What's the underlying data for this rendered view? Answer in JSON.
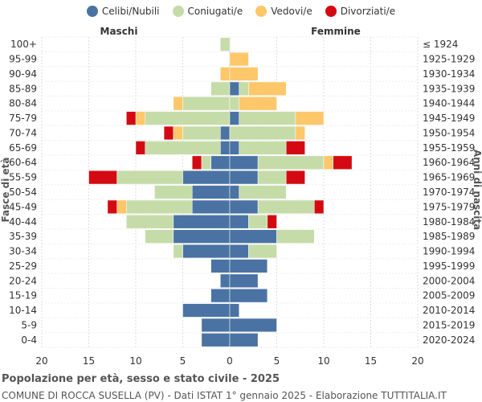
{
  "chart_data": {
    "type": "bar",
    "orientation": "horizontal-population-pyramid",
    "title": "Popolazione per età, sesso e stato civile - 2025",
    "subtitle": "COMUNE DI ROCCA SUSELLA (PV) - Dati ISTAT 1° gennaio 2025 - Elaborazione TUTTITALIA.IT",
    "left_label": "Maschi",
    "right_label": "Femmine",
    "ylabel_left": "Fasce di età",
    "ylabel_right": "Anni di nascita",
    "xlim": [
      -20,
      20
    ],
    "x_ticks": [
      "20",
      "15",
      "10",
      "5",
      "0",
      "5",
      "10",
      "15",
      "20"
    ],
    "grid": true,
    "legend_position": "top",
    "series": [
      {
        "name": "Celibi/Nubili",
        "color": "#4a73a4"
      },
      {
        "name": "Coniugati/e",
        "color": "#c5dca8"
      },
      {
        "name": "Vedovi/e",
        "color": "#fdc76a"
      },
      {
        "name": "Divorziati/e",
        "color": "#d40a12"
      }
    ],
    "rows": [
      {
        "age": "100+",
        "birth": "≤ 1924",
        "male": [
          0,
          1,
          0,
          0
        ],
        "female": [
          0,
          0,
          0,
          0
        ]
      },
      {
        "age": "95-99",
        "birth": "1925-1929",
        "male": [
          0,
          0,
          0,
          0
        ],
        "female": [
          0,
          0,
          2,
          0
        ]
      },
      {
        "age": "90-94",
        "birth": "1930-1934",
        "male": [
          0,
          0,
          1,
          0
        ],
        "female": [
          0,
          0,
          3,
          0
        ]
      },
      {
        "age": "85-89",
        "birth": "1935-1939",
        "male": [
          0,
          2,
          0,
          0
        ],
        "female": [
          1,
          1,
          4,
          0
        ]
      },
      {
        "age": "80-84",
        "birth": "1940-1944",
        "male": [
          0,
          5,
          1,
          0
        ],
        "female": [
          0,
          1,
          4,
          0
        ]
      },
      {
        "age": "75-79",
        "birth": "1945-1949",
        "male": [
          0,
          9,
          1,
          1
        ],
        "female": [
          1,
          6,
          3,
          0
        ]
      },
      {
        "age": "70-74",
        "birth": "1950-1954",
        "male": [
          1,
          4,
          1,
          1
        ],
        "female": [
          0,
          7,
          1,
          0
        ]
      },
      {
        "age": "65-69",
        "birth": "1955-1959",
        "male": [
          1,
          8,
          0,
          1
        ],
        "female": [
          1,
          5,
          0,
          2
        ]
      },
      {
        "age": "60-64",
        "birth": "1960-1964",
        "male": [
          2,
          1,
          0,
          1
        ],
        "female": [
          3,
          7,
          1,
          2
        ]
      },
      {
        "age": "55-59",
        "birth": "1965-1969",
        "male": [
          5,
          7,
          0,
          3
        ],
        "female": [
          3,
          3,
          0,
          2
        ]
      },
      {
        "age": "50-54",
        "birth": "1970-1974",
        "male": [
          4,
          4,
          0,
          0
        ],
        "female": [
          1,
          5,
          0,
          0
        ]
      },
      {
        "age": "45-49",
        "birth": "1975-1979",
        "male": [
          4,
          7,
          1,
          1
        ],
        "female": [
          3,
          6,
          0,
          1
        ]
      },
      {
        "age": "40-44",
        "birth": "1980-1984",
        "male": [
          6,
          5,
          0,
          0
        ],
        "female": [
          2,
          2,
          0,
          1
        ]
      },
      {
        "age": "35-39",
        "birth": "1985-1989",
        "male": [
          6,
          3,
          0,
          0
        ],
        "female": [
          5,
          4,
          0,
          0
        ]
      },
      {
        "age": "30-34",
        "birth": "1990-1994",
        "male": [
          5,
          1,
          0,
          0
        ],
        "female": [
          2,
          3,
          0,
          0
        ]
      },
      {
        "age": "25-29",
        "birth": "1995-1999",
        "male": [
          2,
          0,
          0,
          0
        ],
        "female": [
          4,
          0,
          0,
          0
        ]
      },
      {
        "age": "20-24",
        "birth": "2000-2004",
        "male": [
          1,
          0,
          0,
          0
        ],
        "female": [
          3,
          0,
          0,
          0
        ]
      },
      {
        "age": "15-19",
        "birth": "2005-2009",
        "male": [
          2,
          0,
          0,
          0
        ],
        "female": [
          4,
          0,
          0,
          0
        ]
      },
      {
        "age": "10-14",
        "birth": "2010-2014",
        "male": [
          5,
          0,
          0,
          0
        ],
        "female": [
          1,
          0,
          0,
          0
        ]
      },
      {
        "age": "5-9",
        "birth": "2015-2019",
        "male": [
          3,
          0,
          0,
          0
        ],
        "female": [
          5,
          0,
          0,
          0
        ]
      },
      {
        "age": "0-4",
        "birth": "2020-2024",
        "male": [
          3,
          0,
          0,
          0
        ],
        "female": [
          3,
          0,
          0,
          0
        ]
      }
    ]
  }
}
